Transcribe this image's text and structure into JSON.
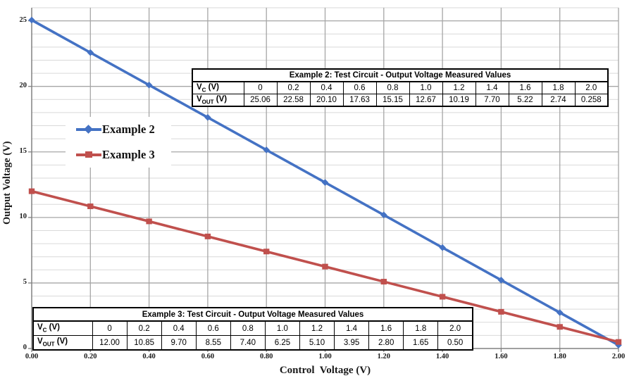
{
  "chart_data": {
    "type": "line",
    "title": "",
    "xlabel": "Control  Voltage (V)",
    "ylabel": "Output Voltage (V)",
    "x": [
      0,
      0.2,
      0.4,
      0.6,
      0.8,
      1.0,
      1.2,
      1.4,
      1.6,
      1.8,
      2.0
    ],
    "series": [
      {
        "name": "Example 2",
        "color": "#4472C4",
        "marker": "diamond",
        "values": [
          25.06,
          22.58,
          20.1,
          17.63,
          15.15,
          12.67,
          10.19,
          7.7,
          5.22,
          2.74,
          0.258
        ]
      },
      {
        "name": "Example 3",
        "color": "#C0504D",
        "marker": "square",
        "values": [
          12.0,
          10.85,
          9.7,
          8.55,
          7.4,
          6.25,
          5.1,
          3.95,
          2.8,
          1.65,
          0.5
        ]
      }
    ],
    "xlim": [
      0,
      2.0
    ],
    "ylim": [
      0,
      26
    ],
    "x_tick_labels": [
      "0.00",
      "0.20",
      "0.40",
      "0.60",
      "0.80",
      "1.00",
      "1.20",
      "1.40",
      "1.60",
      "1.80",
      "2.00"
    ],
    "y_tick_labels": [
      "0",
      "5",
      "10",
      "15",
      "20",
      "25"
    ],
    "y_major_unit": 5,
    "y_minor_unit": 1,
    "grid": "both",
    "legend_position": "inside-upper-left",
    "colors": {
      "minor_grid": "#D9D9D9",
      "major_grid": "#A6A6A6",
      "axis": "#808080",
      "text": "#1A1A1A"
    }
  },
  "tables": [
    {
      "title": "Example 2: Test Circuit - Output Voltage Measured Values",
      "rows": [
        {
          "header": {
            "base": "V",
            "sub": "C",
            "rest": " (V)"
          },
          "values": [
            "0",
            "0.2",
            "0.4",
            "0.6",
            "0.8",
            "1.0",
            "1.2",
            "1.4",
            "1.6",
            "1.8",
            "2.0"
          ]
        },
        {
          "header": {
            "base": "V",
            "sub": "OUT",
            "rest": " (V)"
          },
          "values": [
            "25.06",
            "22.58",
            "20.10",
            "17.63",
            "15.15",
            "12.67",
            "10.19",
            "7.70",
            "5.22",
            "2.74",
            "0.258"
          ]
        }
      ]
    },
    {
      "title": "Example 3: Test Circuit - Output Voltage Measured Values",
      "rows": [
        {
          "header": {
            "base": "V",
            "sub": "C",
            "rest": " (V)"
          },
          "values": [
            "0",
            "0.2",
            "0.4",
            "0.6",
            "0.8",
            "1.0",
            "1.2",
            "1.4",
            "1.6",
            "1.8",
            "2.0"
          ]
        },
        {
          "header": {
            "base": "V",
            "sub": "OUT",
            "rest": " (V)"
          },
          "values": [
            "12.00",
            "10.85",
            "9.70",
            "8.55",
            "7.40",
            "6.25",
            "5.10",
            "3.95",
            "2.80",
            "1.65",
            "0.50"
          ]
        }
      ]
    }
  ]
}
